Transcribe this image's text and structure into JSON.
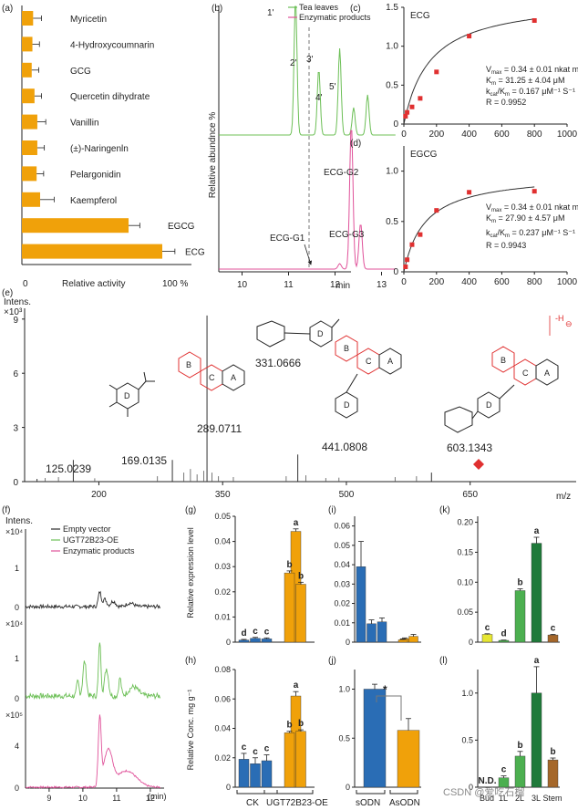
{
  "watermark": "CSDN @爱吃石榴",
  "colors": {
    "orange": "#f0a10a",
    "blue": "#2a6db5",
    "green": "#6cbf56",
    "pink": "#e0529a",
    "black": "#2b2b2b",
    "red": "#e03030",
    "yellow": "#e6e632",
    "darkgreen": "#1f7a3a",
    "lightgreen": "#4caf50",
    "brown": "#a5672a"
  },
  "panel_a": {
    "label": "(a)",
    "xlabel": "Relative activity",
    "xmax_label": "100 %",
    "categories": [
      "Myricetin",
      "4-Hydroxycoumnarin",
      "GCG",
      "Quercetin dihydrate",
      "Vanillin",
      "(±)-Naringenln",
      "Pelargonidin",
      "Kaempferol",
      "EGCG",
      "ECG"
    ],
    "values": [
      8,
      7.5,
      7,
      9,
      11,
      11,
      10.5,
      13,
      76,
      100
    ],
    "errors": [
      6,
      5,
      5,
      5,
      6,
      5,
      5,
      10,
      8,
      9
    ]
  },
  "panel_b": {
    "label": "(b)",
    "ylabel": "Relative abundnce %",
    "xlabel": "min",
    "ticks": [
      "10",
      "11",
      "12",
      "13"
    ],
    "legend": [
      "Tea leaves",
      "Enzymatic products"
    ],
    "peaks_green": [
      "1'",
      "2'",
      "3'",
      "4'",
      "5'"
    ],
    "peaks_pink": [
      "ECG-G2",
      "ECG-G1",
      "ECG-G3"
    ]
  },
  "panel_c": {
    "label": "(c)",
    "title": "ECG",
    "xticks": [
      "0",
      "200",
      "400",
      "600",
      "800",
      "1000"
    ],
    "yticks": [
      "0",
      "0.5",
      "1.0",
      "1.5"
    ],
    "points": [
      [
        10,
        0.1
      ],
      [
        20,
        0.15
      ],
      [
        50,
        0.22
      ],
      [
        100,
        0.33
      ],
      [
        200,
        0.67
      ],
      [
        400,
        1.13
      ],
      [
        800,
        1.33
      ]
    ],
    "text": [
      "V",
      "max",
      " = 0.34 ± 0.01 nkat mg⁻¹",
      "K",
      "m",
      " = 31.25 ± 4.04 μM",
      "k",
      "cat",
      "/K",
      "m",
      " = 0.167 μM⁻¹ S⁻¹",
      "R = 0.9952"
    ]
  },
  "panel_d": {
    "label": "(d)",
    "title": "EGCG",
    "xticks": [
      "0",
      "200",
      "400",
      "600",
      "800",
      "1000"
    ],
    "yticks": [
      "0",
      "0.5",
      "1.0"
    ],
    "points": [
      [
        10,
        0.05
      ],
      [
        20,
        0.12
      ],
      [
        50,
        0.27
      ],
      [
        100,
        0.37
      ],
      [
        200,
        0.61
      ],
      [
        400,
        0.79
      ],
      [
        800,
        0.8
      ]
    ],
    "text": [
      "V",
      "max",
      " = 0.34 ± 0.01 nkat mg⁻¹",
      "K",
      "m",
      " = 27.90 ± 4.57 μM",
      "k",
      "cat",
      "/K",
      "m",
      " = 0.237 μM⁻¹ S⁻¹",
      "R = 0.9943"
    ]
  },
  "panel_e": {
    "label": "(e)",
    "ylabel": "Intens.",
    "yunit": "×10³",
    "yticks": [
      "0",
      "3",
      "6",
      "9"
    ],
    "xticks": [
      "200",
      "350",
      "500",
      "650"
    ],
    "xunit": "m/z",
    "peaks": [
      {
        "mz": 125.0239,
        "h": 0.15
      },
      {
        "mz": 169.0135,
        "h": 1.2
      },
      {
        "mz": 289.0711,
        "h": 1.2
      },
      {
        "mz": 331.0666,
        "h": 9.2
      },
      {
        "mz": 441.0808,
        "h": 1.5
      },
      {
        "mz": 603.1343,
        "h": 0.5
      }
    ],
    "peak_labels": [
      "125.0239",
      "169.0135",
      "289.0711",
      "331.0666",
      "441.0808",
      "603.1343"
    ],
    "ring_labels": [
      "D",
      "B",
      "C",
      "A"
    ],
    "charge": "-H",
    "charge_sign": "⊖"
  },
  "panel_f": {
    "label": "(f)",
    "ylabel": "Intens.",
    "units": [
      "×10⁴",
      "×10⁴",
      "×10⁵"
    ],
    "ticks": [
      "0",
      "1",
      "0",
      "1",
      "0",
      "4"
    ],
    "xticks": [
      "9",
      "10",
      "11",
      "12"
    ],
    "xunit": "(min)",
    "legend": [
      "Empty vector",
      "UGT72B23-OE",
      "Enzymatic products"
    ]
  },
  "panel_g": {
    "label": "(g)",
    "ylabel": "Relative expression level",
    "yticks": [
      "0",
      "0.01",
      "0.02",
      "0.03",
      "0.04",
      "0.05"
    ],
    "values": [
      0.0008,
      0.0015,
      0.0013,
      0.044,
      0.0275,
      0.023
    ],
    "errors": [
      0.0003,
      0.0004,
      0.0004,
      0.001,
      0.0008,
      0.0008
    ],
    "letters": [
      "d",
      "c",
      "c",
      "a",
      "b",
      "b"
    ]
  },
  "panel_h": {
    "label": "(h)",
    "ylabel": "Relative Conc. mg g⁻¹",
    "yticks": [
      "0",
      "0.02",
      "0.04",
      "0.06",
      "0.08"
    ],
    "values": [
      0.019,
      0.016,
      0.018,
      0.062,
      0.037,
      0.038
    ],
    "errors": [
      0.004,
      0.004,
      0.004,
      0.003,
      0.001,
      0.001
    ],
    "letters": [
      "c",
      "c",
      "c",
      "a",
      "b",
      "b"
    ],
    "groups": [
      "CK",
      "UGT72B23-OE"
    ]
  },
  "panel_i": {
    "label": "(i)",
    "yticks": [
      "0",
      "0.01",
      "0.02",
      "0.03",
      "0.04",
      "0.05",
      "0.06"
    ],
    "values": [
      0.039,
      0.0095,
      0.0105,
      0.0018,
      0.0012,
      0.003
    ],
    "errors": [
      0.013,
      0.002,
      0.002,
      0.0004,
      0.0003,
      0.001
    ]
  },
  "panel_j": {
    "label": "(j)",
    "yticks": [
      "0",
      "0.5",
      "1.0"
    ],
    "values": [
      1.0,
      0.58
    ],
    "errors": [
      0.05,
      0.12
    ],
    "groups": [
      "sODN",
      "AsODN"
    ],
    "sig": "*"
  },
  "panel_k": {
    "label": "(k)",
    "yticks": [
      "0",
      "0.05",
      "0.10",
      "0.15",
      "0.20"
    ],
    "values": [
      0.013,
      0.003,
      0.086,
      0.165,
      0.012
    ],
    "errors": [
      0.001,
      0.0005,
      0.003,
      0.01,
      0.001
    ],
    "letters": [
      "c",
      "d",
      "b",
      "a",
      "c"
    ]
  },
  "panel_l": {
    "label": "(l)",
    "yticks": [
      "0",
      "0.5",
      "1.0"
    ],
    "values": [
      0,
      0.1,
      0.33,
      1.0,
      0.29
    ],
    "errors": [
      0,
      0.02,
      0.05,
      0.28,
      0.02
    ],
    "letters": [
      "N.D.",
      "c",
      "b",
      "a",
      "b"
    ],
    "categories": [
      "Bud",
      "1L",
      "2L",
      "3L",
      "Stem"
    ]
  }
}
